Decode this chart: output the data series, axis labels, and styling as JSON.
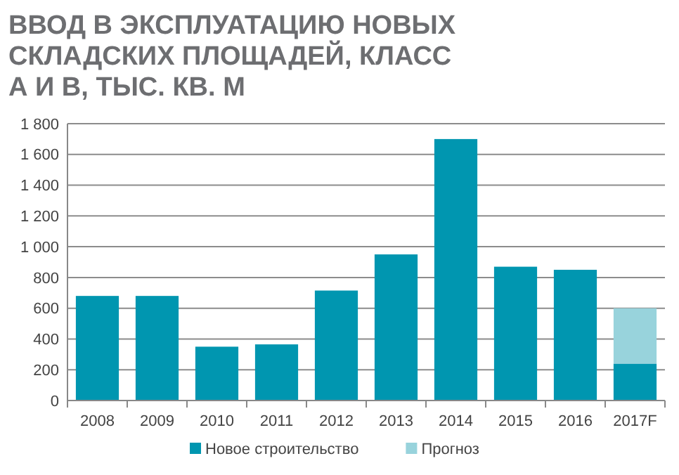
{
  "chart_data": {
    "type": "bar",
    "title": "ВВОД В ЭКСПЛУАТАЦИЮ НОВЫХ СКЛАДСКИХ ПЛОЩАДЕЙ, КЛАСС А И В, ТЫС. КВ. М",
    "categories": [
      "2008",
      "2009",
      "2010",
      "2011",
      "2012",
      "2013",
      "2014",
      "2015",
      "2016",
      "2017F"
    ],
    "stacked": true,
    "series": [
      {
        "name": "Новое строительство",
        "color": "#0096b0",
        "values": [
          680,
          680,
          350,
          365,
          715,
          950,
          1700,
          870,
          850,
          240
        ]
      },
      {
        "name": "Прогноз",
        "color": "#98d3dc",
        "values": [
          null,
          null,
          null,
          null,
          null,
          null,
          null,
          null,
          null,
          360
        ]
      }
    ],
    "ylim": [
      0,
      1800
    ],
    "yticks": [
      0,
      200,
      400,
      600,
      800,
      {
        "value": 1000,
        "label": "1 000"
      },
      {
        "value": 1200,
        "label": "1 200"
      },
      {
        "value": 1400,
        "label": "1 400"
      },
      {
        "value": 1600,
        "label": "1 600"
      },
      {
        "value": 1800,
        "label": "1 800"
      }
    ],
    "grid": "y",
    "legend": "bottom"
  }
}
